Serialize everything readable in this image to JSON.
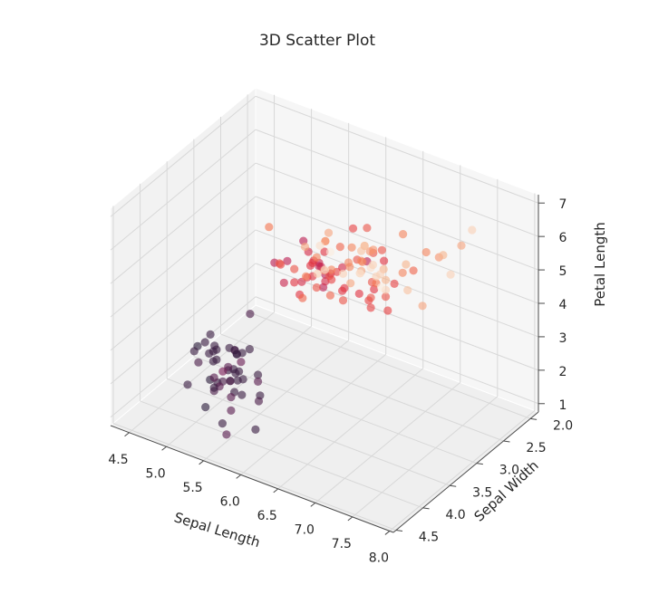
{
  "chart_data": {
    "type": "scatter",
    "title": "3D Scatter Plot",
    "xlabel": "Sepal Length",
    "ylabel": "Sepal Width",
    "zlabel": "Petal Length",
    "xlim": [
      4.3,
      7.9
    ],
    "ylim": [
      2.0,
      4.4
    ],
    "zlim": [
      1.0,
      6.9
    ],
    "xticks": [
      "4.5",
      "5.0",
      "5.5",
      "6.0",
      "6.5",
      "7.0",
      "7.5",
      "8.0"
    ],
    "yticks": [
      "2.0",
      "2.5",
      "3.0",
      "3.5",
      "4.0",
      "4.5"
    ],
    "zticks": [
      "1",
      "2",
      "3",
      "4",
      "5",
      "6",
      "7"
    ],
    "grid": true,
    "colormap": [
      "#2d1e3e",
      "#6a1f56",
      "#ae1759",
      "#e13342",
      "#f37651",
      "#f6b48e",
      "#faebdd"
    ],
    "color_by": "Petal Width",
    "points": [
      [
        5.1,
        3.5,
        1.4,
        0.2
      ],
      [
        4.9,
        3.0,
        1.4,
        0.2
      ],
      [
        4.7,
        3.2,
        1.3,
        0.2
      ],
      [
        4.6,
        3.1,
        1.5,
        0.2
      ],
      [
        5.0,
        3.6,
        1.4,
        0.2
      ],
      [
        5.4,
        3.9,
        1.7,
        0.4
      ],
      [
        4.6,
        3.4,
        1.4,
        0.3
      ],
      [
        5.0,
        3.4,
        1.5,
        0.2
      ],
      [
        4.4,
        2.9,
        1.4,
        0.2
      ],
      [
        4.9,
        3.1,
        1.5,
        0.1
      ],
      [
        5.4,
        3.7,
        1.5,
        0.2
      ],
      [
        4.8,
        3.4,
        1.6,
        0.2
      ],
      [
        4.8,
        3.0,
        1.4,
        0.1
      ],
      [
        4.3,
        3.0,
        1.1,
        0.1
      ],
      [
        5.8,
        4.0,
        1.2,
        0.2
      ],
      [
        5.7,
        4.4,
        1.5,
        0.4
      ],
      [
        5.4,
        3.9,
        1.3,
        0.4
      ],
      [
        5.1,
        3.5,
        1.4,
        0.3
      ],
      [
        5.7,
        3.8,
        1.7,
        0.3
      ],
      [
        5.1,
        3.8,
        1.5,
        0.3
      ],
      [
        5.4,
        3.4,
        1.7,
        0.2
      ],
      [
        5.1,
        3.7,
        1.5,
        0.4
      ],
      [
        4.6,
        3.6,
        1.0,
        0.2
      ],
      [
        5.1,
        3.3,
        1.7,
        0.5
      ],
      [
        4.8,
        3.4,
        1.9,
        0.2
      ],
      [
        5.0,
        3.0,
        1.6,
        0.2
      ],
      [
        5.0,
        3.4,
        1.6,
        0.4
      ],
      [
        5.2,
        3.5,
        1.5,
        0.2
      ],
      [
        5.2,
        3.4,
        1.4,
        0.2
      ],
      [
        4.7,
        3.2,
        1.6,
        0.2
      ],
      [
        4.8,
        3.1,
        1.6,
        0.2
      ],
      [
        5.4,
        3.4,
        1.5,
        0.4
      ],
      [
        5.2,
        4.1,
        1.5,
        0.1
      ],
      [
        5.5,
        4.2,
        1.4,
        0.2
      ],
      [
        4.9,
        3.1,
        1.5,
        0.2
      ],
      [
        5.0,
        3.2,
        1.2,
        0.2
      ],
      [
        5.5,
        3.5,
        1.3,
        0.2
      ],
      [
        4.9,
        3.6,
        1.4,
        0.1
      ],
      [
        4.4,
        3.0,
        1.3,
        0.2
      ],
      [
        5.1,
        3.4,
        1.5,
        0.2
      ],
      [
        5.0,
        3.5,
        1.3,
        0.3
      ],
      [
        4.5,
        2.3,
        1.3,
        0.3
      ],
      [
        4.4,
        3.2,
        1.3,
        0.2
      ],
      [
        5.0,
        3.5,
        1.6,
        0.6
      ],
      [
        5.1,
        3.8,
        1.9,
        0.4
      ],
      [
        4.8,
        3.0,
        1.4,
        0.3
      ],
      [
        5.1,
        3.8,
        1.6,
        0.2
      ],
      [
        4.6,
        3.2,
        1.4,
        0.2
      ],
      [
        5.3,
        3.7,
        1.5,
        0.2
      ],
      [
        5.0,
        3.3,
        1.4,
        0.2
      ],
      [
        7.0,
        3.2,
        4.7,
        1.4
      ],
      [
        6.4,
        3.2,
        4.5,
        1.5
      ],
      [
        6.9,
        3.1,
        4.9,
        1.5
      ],
      [
        5.5,
        2.3,
        4.0,
        1.3
      ],
      [
        6.5,
        2.8,
        4.6,
        1.5
      ],
      [
        5.7,
        2.8,
        4.5,
        1.3
      ],
      [
        6.3,
        3.3,
        4.7,
        1.6
      ],
      [
        4.9,
        2.4,
        3.3,
        1.0
      ],
      [
        6.6,
        2.9,
        4.6,
        1.3
      ],
      [
        5.2,
        2.7,
        3.9,
        1.4
      ],
      [
        5.0,
        2.0,
        3.5,
        1.0
      ],
      [
        5.9,
        3.0,
        4.2,
        1.5
      ],
      [
        6.0,
        2.2,
        4.0,
        1.0
      ],
      [
        6.1,
        2.9,
        4.7,
        1.4
      ],
      [
        5.6,
        2.9,
        3.6,
        1.3
      ],
      [
        6.7,
        3.1,
        4.4,
        1.4
      ],
      [
        5.6,
        3.0,
        4.5,
        1.5
      ],
      [
        5.8,
        2.7,
        4.1,
        1.0
      ],
      [
        6.2,
        2.2,
        4.5,
        1.5
      ],
      [
        5.6,
        2.5,
        3.9,
        1.1
      ],
      [
        5.9,
        3.2,
        4.8,
        1.8
      ],
      [
        6.1,
        2.8,
        4.0,
        1.3
      ],
      [
        6.3,
        2.5,
        4.9,
        1.5
      ],
      [
        6.1,
        2.8,
        4.7,
        1.2
      ],
      [
        6.4,
        2.9,
        4.3,
        1.3
      ],
      [
        6.6,
        3.0,
        4.4,
        1.4
      ],
      [
        6.8,
        2.8,
        4.8,
        1.4
      ],
      [
        6.7,
        3.0,
        5.0,
        1.7
      ],
      [
        6.0,
        2.9,
        4.5,
        1.5
      ],
      [
        5.7,
        2.6,
        3.5,
        1.0
      ],
      [
        5.5,
        2.4,
        3.8,
        1.1
      ],
      [
        5.5,
        2.4,
        3.7,
        1.0
      ],
      [
        5.8,
        2.7,
        3.9,
        1.2
      ],
      [
        6.0,
        2.7,
        5.1,
        1.6
      ],
      [
        5.4,
        3.0,
        4.5,
        1.5
      ],
      [
        6.0,
        3.4,
        4.5,
        1.6
      ],
      [
        6.7,
        3.1,
        4.7,
        1.5
      ],
      [
        6.3,
        2.3,
        4.4,
        1.3
      ],
      [
        5.6,
        3.0,
        4.1,
        1.3
      ],
      [
        5.5,
        2.5,
        4.0,
        1.3
      ],
      [
        5.5,
        2.6,
        4.4,
        1.2
      ],
      [
        6.1,
        3.0,
        4.6,
        1.4
      ],
      [
        5.8,
        2.6,
        4.0,
        1.2
      ],
      [
        5.0,
        2.3,
        3.3,
        1.0
      ],
      [
        5.6,
        2.7,
        4.2,
        1.3
      ],
      [
        5.7,
        3.0,
        4.2,
        1.2
      ],
      [
        5.7,
        2.9,
        4.2,
        1.3
      ],
      [
        6.2,
        2.9,
        4.3,
        1.3
      ],
      [
        5.1,
        2.5,
        3.0,
        1.1
      ],
      [
        5.7,
        2.8,
        4.1,
        1.3
      ],
      [
        6.3,
        3.3,
        6.0,
        2.5
      ],
      [
        5.8,
        2.7,
        5.1,
        1.9
      ],
      [
        7.1,
        3.0,
        5.9,
        2.1
      ],
      [
        6.3,
        2.9,
        5.6,
        1.8
      ],
      [
        6.5,
        3.0,
        5.8,
        2.2
      ],
      [
        7.6,
        3.0,
        6.6,
        2.1
      ],
      [
        4.9,
        2.5,
        4.5,
        1.7
      ],
      [
        7.3,
        2.9,
        6.3,
        1.8
      ],
      [
        6.7,
        2.5,
        5.8,
        1.8
      ],
      [
        7.2,
        3.6,
        6.1,
        2.5
      ],
      [
        6.5,
        3.2,
        5.1,
        2.0
      ],
      [
        6.4,
        2.7,
        5.3,
        1.9
      ],
      [
        6.8,
        3.0,
        5.5,
        2.1
      ],
      [
        5.7,
        2.5,
        5.0,
        2.0
      ],
      [
        5.8,
        2.8,
        5.1,
        2.4
      ],
      [
        6.4,
        3.2,
        5.3,
        2.3
      ],
      [
        6.5,
        3.0,
        5.5,
        1.8
      ],
      [
        7.7,
        3.8,
        6.7,
        2.2
      ],
      [
        7.7,
        2.6,
        6.9,
        2.3
      ],
      [
        6.0,
        2.2,
        5.0,
        1.5
      ],
      [
        6.9,
        3.2,
        5.7,
        2.3
      ],
      [
        5.6,
        2.8,
        4.9,
        2.0
      ],
      [
        7.7,
        2.8,
        6.7,
        2.0
      ],
      [
        6.3,
        2.7,
        4.9,
        1.8
      ],
      [
        6.7,
        3.3,
        5.7,
        2.1
      ],
      [
        7.2,
        3.2,
        6.0,
        1.8
      ],
      [
        6.2,
        2.8,
        4.8,
        1.8
      ],
      [
        6.1,
        3.0,
        4.9,
        1.8
      ],
      [
        6.4,
        2.8,
        5.6,
        2.1
      ],
      [
        7.2,
        3.0,
        5.8,
        1.6
      ],
      [
        7.4,
        2.8,
        6.1,
        1.9
      ],
      [
        7.9,
        3.8,
        6.4,
        2.0
      ],
      [
        6.4,
        2.8,
        5.6,
        2.2
      ],
      [
        6.3,
        2.8,
        5.1,
        1.5
      ],
      [
        6.1,
        2.6,
        5.6,
        1.4
      ],
      [
        7.7,
        3.0,
        6.1,
        2.3
      ],
      [
        6.3,
        3.4,
        5.6,
        2.4
      ],
      [
        6.4,
        3.1,
        5.5,
        1.8
      ],
      [
        6.0,
        3.0,
        4.8,
        1.8
      ],
      [
        6.9,
        3.1,
        5.4,
        2.1
      ],
      [
        6.7,
        3.1,
        5.6,
        2.4
      ],
      [
        6.9,
        3.1,
        5.1,
        2.3
      ],
      [
        5.8,
        2.7,
        5.1,
        1.9
      ],
      [
        6.8,
        3.2,
        5.9,
        2.3
      ],
      [
        6.7,
        3.3,
        5.7,
        2.5
      ],
      [
        6.7,
        3.0,
        5.2,
        2.3
      ],
      [
        6.3,
        2.5,
        5.0,
        1.9
      ],
      [
        6.5,
        3.0,
        5.2,
        2.0
      ],
      [
        6.2,
        3.4,
        5.4,
        2.3
      ],
      [
        5.9,
        3.0,
        5.1,
        1.8
      ]
    ]
  }
}
